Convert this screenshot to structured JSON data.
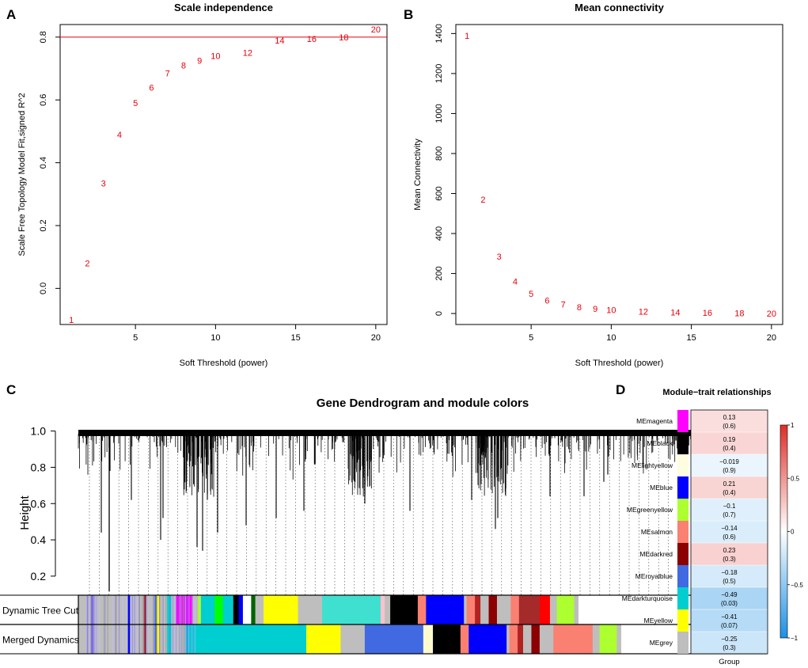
{
  "panels": {
    "A": "A",
    "B": "B",
    "C": "C",
    "D": "D"
  },
  "chart_data": [
    {
      "id": "A",
      "type": "scatter",
      "title": "Scale independence",
      "xlabel": "Soft Threshold (power)",
      "ylabel": "Scale Free Topology Model Fit,signed R^2",
      "xlim": [
        0.3,
        20.7
      ],
      "ylim": [
        -0.115,
        0.84
      ],
      "xticks": [
        5,
        10,
        15,
        20
      ],
      "yticks": [
        0.0,
        0.2,
        0.4,
        0.6,
        0.8
      ],
      "ytick_labels": [
        "0.0",
        "0.2",
        "0.4",
        "0.6",
        "0.8"
      ],
      "hline": 0.8,
      "point_color": "#e8000b",
      "points": [
        {
          "x": 1,
          "y": -0.1,
          "label": "1"
        },
        {
          "x": 2,
          "y": 0.08,
          "label": "2"
        },
        {
          "x": 3,
          "y": 0.335,
          "label": "3"
        },
        {
          "x": 4,
          "y": 0.49,
          "label": "4"
        },
        {
          "x": 5,
          "y": 0.59,
          "label": "5"
        },
        {
          "x": 6,
          "y": 0.64,
          "label": "6"
        },
        {
          "x": 7,
          "y": 0.685,
          "label": "7"
        },
        {
          "x": 8,
          "y": 0.71,
          "label": "8"
        },
        {
          "x": 9,
          "y": 0.725,
          "label": "9"
        },
        {
          "x": 10,
          "y": 0.74,
          "label": "10"
        },
        {
          "x": 12,
          "y": 0.75,
          "label": "12"
        },
        {
          "x": 14,
          "y": 0.79,
          "label": "14"
        },
        {
          "x": 16,
          "y": 0.795,
          "label": "16"
        },
        {
          "x": 18,
          "y": 0.8,
          "label": "18"
        },
        {
          "x": 20,
          "y": 0.825,
          "label": "20"
        }
      ]
    },
    {
      "id": "B",
      "type": "scatter",
      "title": "Mean connectivity",
      "xlabel": "Soft Threshold (power)",
      "ylabel": "Mean Connectivity",
      "xlim": [
        0.3,
        20.7
      ],
      "ylim": [
        -55,
        1445
      ],
      "xticks": [
        5,
        10,
        15,
        20
      ],
      "yticks": [
        0,
        200,
        400,
        600,
        800,
        1000,
        1200,
        1400
      ],
      "ytick_labels": [
        "0",
        "200",
        "400",
        "600",
        "800",
        "1000",
        "1200",
        "1400"
      ],
      "point_color": "#e8000b",
      "points": [
        {
          "x": 1,
          "y": 1390,
          "label": "1"
        },
        {
          "x": 2,
          "y": 570,
          "label": "2"
        },
        {
          "x": 3,
          "y": 285,
          "label": "3"
        },
        {
          "x": 4,
          "y": 160,
          "label": "4"
        },
        {
          "x": 5,
          "y": 100,
          "label": "5"
        },
        {
          "x": 6,
          "y": 65,
          "label": "6"
        },
        {
          "x": 7,
          "y": 45,
          "label": "7"
        },
        {
          "x": 8,
          "y": 33,
          "label": "8"
        },
        {
          "x": 9,
          "y": 24,
          "label": "9"
        },
        {
          "x": 10,
          "y": 18,
          "label": "10"
        },
        {
          "x": 12,
          "y": 10,
          "label": "12"
        },
        {
          "x": 14,
          "y": 6,
          "label": "14"
        },
        {
          "x": 16,
          "y": 4,
          "label": "16"
        },
        {
          "x": 18,
          "y": 2,
          "label": "18"
        },
        {
          "x": 20,
          "y": 1,
          "label": "20"
        }
      ]
    },
    {
      "id": "C",
      "type": "dendrogram",
      "title": "Gene Dendrogram and module colors",
      "ylabel": "Height",
      "ylim": [
        0.06,
        1.02
      ],
      "yticks": [
        0.2,
        0.4,
        0.6,
        0.8,
        1.0
      ],
      "ytick_labels": [
        "0.2",
        "0.4",
        "0.6",
        "0.8",
        "1.0"
      ],
      "track_labels": [
        "Dynamic Tree Cut",
        "Merged Dynamics"
      ],
      "dynamic_tree_cut": [
        {
          "color": "#bebebe",
          "w": 0.018
        },
        {
          "color": "#7b68ee",
          "w": 0.004
        },
        {
          "color": "#bebebe",
          "w": 0.05
        },
        {
          "color": "#0000ff",
          "w": 0.003
        },
        {
          "color": "#bebebe",
          "w": 0.02
        },
        {
          "color": "#8b0000",
          "w": 0.003
        },
        {
          "color": "#bebebe",
          "w": 0.012
        },
        {
          "color": "#4169e1",
          "w": 0.004
        },
        {
          "color": "#ffff00",
          "w": 0.005
        },
        {
          "color": "#bebebe",
          "w": 0.01
        },
        {
          "color": "#00ced1",
          "w": 0.006
        },
        {
          "color": "#bebebe",
          "w": 0.006
        },
        {
          "color": "#ff00ff",
          "w": 0.025
        },
        {
          "color": "#bebebe",
          "w": 0.008
        },
        {
          "color": "#adff2f",
          "w": 0.004
        },
        {
          "color": "#00ced1",
          "w": 0.02
        },
        {
          "color": "#00ff00",
          "w": 0.012
        },
        {
          "color": "#00ced1",
          "w": 0.015
        },
        {
          "color": "#000000",
          "w": 0.008
        },
        {
          "color": "#0000ff",
          "w": 0.006
        },
        {
          "color": "#ffffff",
          "w": 0.012
        },
        {
          "color": "#006400",
          "w": 0.006
        },
        {
          "color": "#bebebe",
          "w": 0.012
        },
        {
          "color": "#ffff00",
          "w": 0.05
        },
        {
          "color": "#bebebe",
          "w": 0.035
        },
        {
          "color": "#40e0d0",
          "w": 0.085
        },
        {
          "color": "#ffc0cb",
          "w": 0.006
        },
        {
          "color": "#bebebe",
          "w": 0.008
        },
        {
          "color": "#000000",
          "w": 0.04
        },
        {
          "color": "#fa8072",
          "w": 0.012
        },
        {
          "color": "#0000ff",
          "w": 0.055
        },
        {
          "color": "#bebebe",
          "w": 0.004
        },
        {
          "color": "#fa8072",
          "w": 0.012
        },
        {
          "color": "#b22222",
          "w": 0.008
        },
        {
          "color": "#bebebe",
          "w": 0.012
        },
        {
          "color": "#8b0000",
          "w": 0.012
        },
        {
          "color": "#bebebe",
          "w": 0.02
        },
        {
          "color": "#fa8072",
          "w": 0.012
        },
        {
          "color": "#a52a2a",
          "w": 0.03
        },
        {
          "color": "#ff0000",
          "w": 0.015
        },
        {
          "color": "#bebebe",
          "w": 0.01
        },
        {
          "color": "#adff2f",
          "w": 0.025
        },
        {
          "color": "#bebebe",
          "w": 0.006
        }
      ],
      "merged_dynamics": [
        {
          "color": "#bebebe",
          "w": 0.018
        },
        {
          "color": "#7b68ee",
          "w": 0.004
        },
        {
          "color": "#bebebe",
          "w": 0.05
        },
        {
          "color": "#0000ff",
          "w": 0.003
        },
        {
          "color": "#bebebe",
          "w": 0.02
        },
        {
          "color": "#8b0000",
          "w": 0.003
        },
        {
          "color": "#bebebe",
          "w": 0.012
        },
        {
          "color": "#4169e1",
          "w": 0.004
        },
        {
          "color": "#ffff00",
          "w": 0.005
        },
        {
          "color": "#bebebe",
          "w": 0.01
        },
        {
          "color": "#00ced1",
          "w": 0.006
        },
        {
          "color": "#bebebe",
          "w": 0.02
        },
        {
          "color": "#00ced1",
          "w": 0.176
        },
        {
          "color": "#ffff00",
          "w": 0.05
        },
        {
          "color": "#bebebe",
          "w": 0.035
        },
        {
          "color": "#4169e1",
          "w": 0.085
        },
        {
          "color": "#fffacd",
          "w": 0.014
        },
        {
          "color": "#000000",
          "w": 0.04
        },
        {
          "color": "#fa8072",
          "w": 0.012
        },
        {
          "color": "#0000ff",
          "w": 0.055
        },
        {
          "color": "#bebebe",
          "w": 0.004
        },
        {
          "color": "#fa8072",
          "w": 0.012
        },
        {
          "color": "#b22222",
          "w": 0.008
        },
        {
          "color": "#bebebe",
          "w": 0.012
        },
        {
          "color": "#8b0000",
          "w": 0.012
        },
        {
          "color": "#bebebe",
          "w": 0.02
        },
        {
          "color": "#fa8072",
          "w": 0.057
        },
        {
          "color": "#bebebe",
          "w": 0.01
        },
        {
          "color": "#adff2f",
          "w": 0.025
        },
        {
          "color": "#bebebe",
          "w": 0.006
        }
      ]
    },
    {
      "id": "D",
      "type": "heatmap",
      "title": "Module−trait relationships",
      "xlabel": "Group",
      "colorbar_ticks": [
        1,
        0.5,
        0,
        -0.5,
        -1
      ],
      "colorbar_tick_labels": [
        "1",
        "0.5",
        "0",
        "−0.5",
        "−1"
      ],
      "colorbar_range": [
        -1,
        1
      ],
      "rows": [
        {
          "module": "MEmagenta",
          "swatch": "#ff00ff",
          "r": 0.13,
          "r_label": "0.13",
          "p_label": "(0.6)"
        },
        {
          "module": "MEblack",
          "swatch": "#000000",
          "r": 0.19,
          "r_label": "0.19",
          "p_label": "(0.4)"
        },
        {
          "module": "MElightyellow",
          "swatch": "#fffde0",
          "r": -0.019,
          "r_label": "−0.019",
          "p_label": "(0.9)"
        },
        {
          "module": "MEblue",
          "swatch": "#0000ff",
          "r": 0.21,
          "r_label": "0.21",
          "p_label": "(0.4)"
        },
        {
          "module": "MEgreenyellow",
          "swatch": "#adff2f",
          "r": -0.1,
          "r_label": "−0.1",
          "p_label": "(0.7)"
        },
        {
          "module": "MEsalmon",
          "swatch": "#fa8072",
          "r": -0.14,
          "r_label": "−0.14",
          "p_label": "(0.6)"
        },
        {
          "module": "MEdarkred",
          "swatch": "#8b0000",
          "r": 0.23,
          "r_label": "0.23",
          "p_label": "(0.3)"
        },
        {
          "module": "MEroyalblue",
          "swatch": "#4169e1",
          "r": -0.18,
          "r_label": "−0.18",
          "p_label": "(0.5)"
        },
        {
          "module": "MEdarkturquoise",
          "swatch": "#00ced1",
          "r": -0.49,
          "r_label": "−0.49",
          "p_label": "(0.03)"
        },
        {
          "module": "MEyellow",
          "swatch": "#ffff00",
          "r": -0.41,
          "r_label": "−0.41",
          "p_label": "(0.07)"
        },
        {
          "module": "MEgrey",
          "swatch": "#bebebe",
          "r": -0.25,
          "r_label": "−0.25",
          "p_label": "(0.3)"
        }
      ]
    }
  ]
}
